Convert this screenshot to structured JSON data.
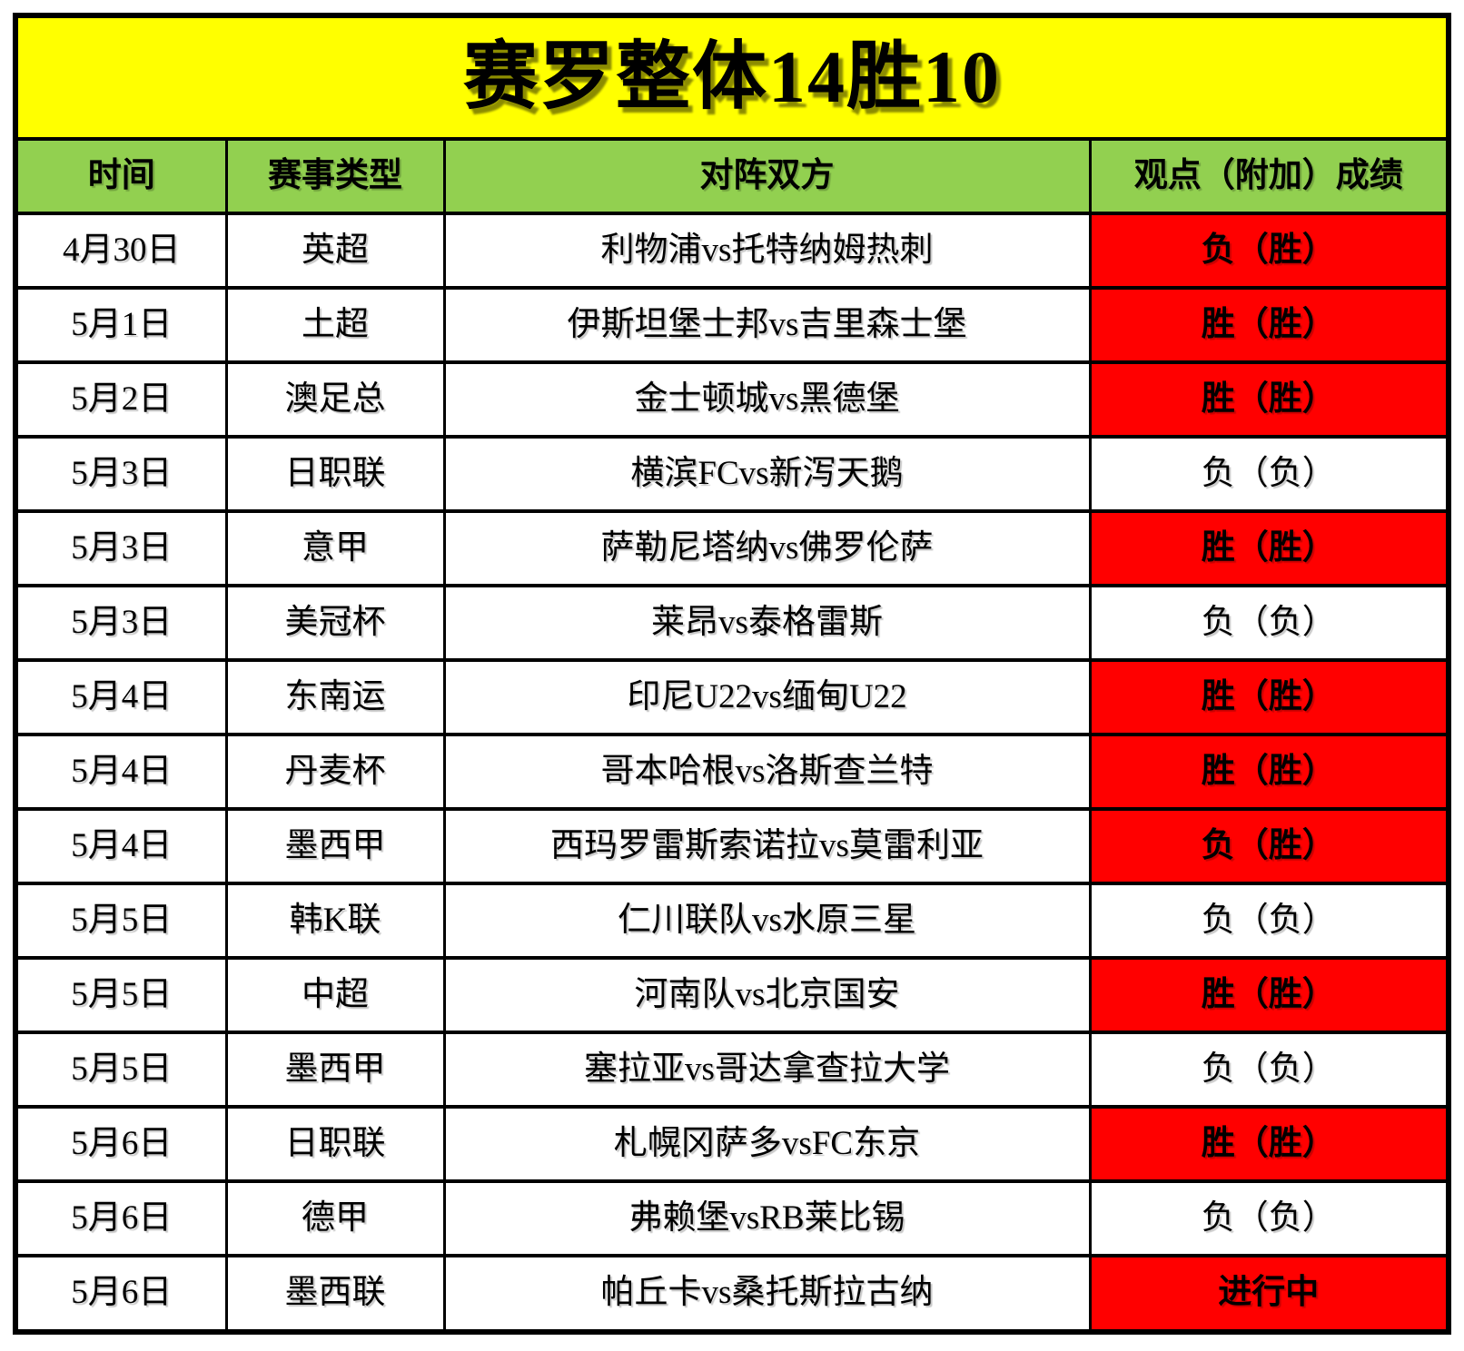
{
  "banner": {
    "title": "赛罗整体14胜10"
  },
  "table": {
    "headers": [
      "时间",
      "赛事类型",
      "对阵双方",
      "观点（附加）成绩"
    ],
    "rows": [
      {
        "date": "4月30日",
        "league": "英超",
        "match": "利物浦vs托特纳姆热刺",
        "result": "负（胜）",
        "highlight": true
      },
      {
        "date": "5月1日",
        "league": "土超",
        "match": "伊斯坦堡士邦vs吉里森士堡",
        "result": "胜（胜）",
        "highlight": true
      },
      {
        "date": "5月2日",
        "league": "澳足总",
        "match": "金士顿城vs黑德堡",
        "result": "胜（胜）",
        "highlight": true
      },
      {
        "date": "5月3日",
        "league": "日职联",
        "match": "横滨FCvs新泻天鹅",
        "result": "负（负）",
        "highlight": false
      },
      {
        "date": "5月3日",
        "league": "意甲",
        "match": "萨勒尼塔纳vs佛罗伦萨",
        "result": "胜（胜）",
        "highlight": true
      },
      {
        "date": "5月3日",
        "league": "美冠杯",
        "match": "莱昂vs泰格雷斯",
        "result": "负（负）",
        "highlight": false
      },
      {
        "date": "5月4日",
        "league": "东南运",
        "match": "印尼U22vs缅甸U22",
        "result": "胜（胜）",
        "highlight": true
      },
      {
        "date": "5月4日",
        "league": "丹麦杯",
        "match": "哥本哈根vs洛斯查兰特",
        "result": "胜（胜）",
        "highlight": true
      },
      {
        "date": "5月4日",
        "league": "墨西甲",
        "match": "西玛罗雷斯索诺拉vs莫雷利亚",
        "result": "负（胜）",
        "highlight": true
      },
      {
        "date": "5月5日",
        "league": "韩K联",
        "match": "仁川联队vs水原三星",
        "result": "负（负）",
        "highlight": false
      },
      {
        "date": "5月5日",
        "league": "中超",
        "match": "河南队vs北京国安",
        "result": "胜（胜）",
        "highlight": true
      },
      {
        "date": "5月5日",
        "league": "墨西甲",
        "match": "塞拉亚vs哥达拿查拉大学",
        "result": "负（负）",
        "highlight": false
      },
      {
        "date": "5月6日",
        "league": "日职联",
        "match": "札幌冈萨多vsFC东京",
        "result": "胜（胜）",
        "highlight": true
      },
      {
        "date": "5月6日",
        "league": "德甲",
        "match": "弗赖堡vsRB莱比锡",
        "result": "负（负）",
        "highlight": false
      },
      {
        "date": "5月6日",
        "league": "墨西联",
        "match": "帕丘卡vs桑托斯拉古纳",
        "result": "进行中",
        "highlight": true
      }
    ]
  },
  "colors": {
    "banner_bg": "#FFFF00",
    "header_bg": "#92D050",
    "highlight_bg": "#FF0000",
    "border_color": "#000000",
    "text_color": "#000000"
  }
}
